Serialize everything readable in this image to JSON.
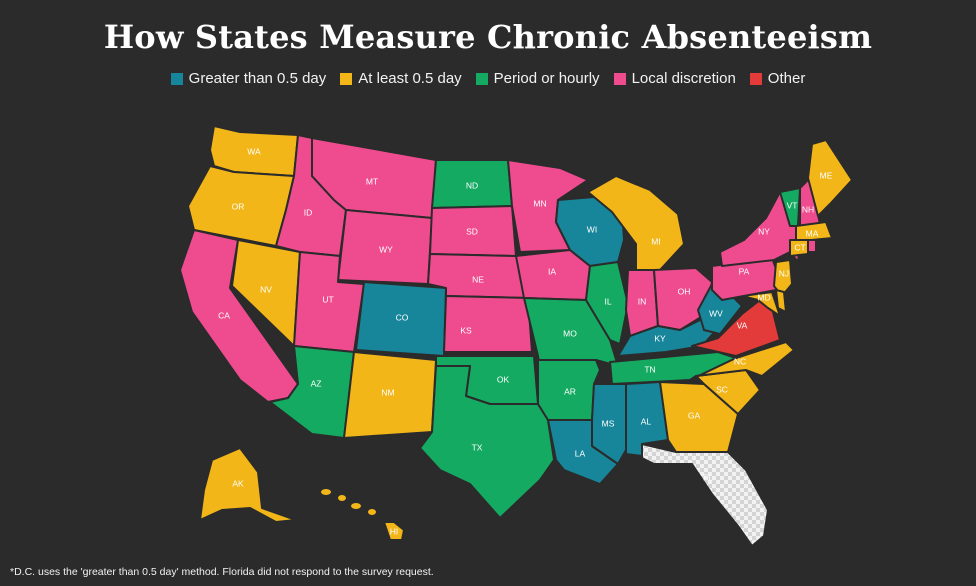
{
  "title": "How States Measure Chronic Absenteeism",
  "legend": [
    {
      "key": "gt",
      "label": "Greater than 0.5 day",
      "color": "#18869a"
    },
    {
      "key": "al",
      "label": "At least 0.5 day",
      "color": "#f2b619"
    },
    {
      "key": "ph",
      "label": "Period or hourly",
      "color": "#15aa62"
    },
    {
      "key": "ld",
      "label": "Local discretion",
      "color": "#ef4c8f"
    },
    {
      "key": "ot",
      "label": "Other",
      "color": "#e33a3a"
    }
  ],
  "no_response_color": "#e8e8e8",
  "states": {
    "WA": "al",
    "OR": "al",
    "CA": "ld",
    "NV": "al",
    "ID": "ld",
    "MT": "ld",
    "WY": "ld",
    "UT": "ld",
    "AZ": "ph",
    "CO": "gt",
    "NM": "al",
    "ND": "ph",
    "SD": "ld",
    "NE": "ld",
    "KS": "ld",
    "OK": "ph",
    "TX": "ph",
    "MN": "ld",
    "IA": "ld",
    "MO": "ph",
    "AR": "ph",
    "LA": "gt",
    "WI": "gt",
    "IL": "ph",
    "MI": "al",
    "IN": "ld",
    "OH": "ld",
    "KY": "gt",
    "TN": "ph",
    "MS": "gt",
    "AL": "gt",
    "GA": "al",
    "FL": "none",
    "SC": "al",
    "NC": "al",
    "VA": "ot",
    "WV": "gt",
    "MD": "al",
    "PA": "ld",
    "NY": "ld",
    "VT": "ph",
    "NH": "ld",
    "ME": "al",
    "MA": "al",
    "CT": "al",
    "RI": "ld",
    "NJ": "al",
    "DE": "al",
    "AK": "al",
    "HI": "al"
  },
  "footnote": "*D.C. uses the 'greater than 0.5 day' method. Florida did not respond to the survey request."
}
